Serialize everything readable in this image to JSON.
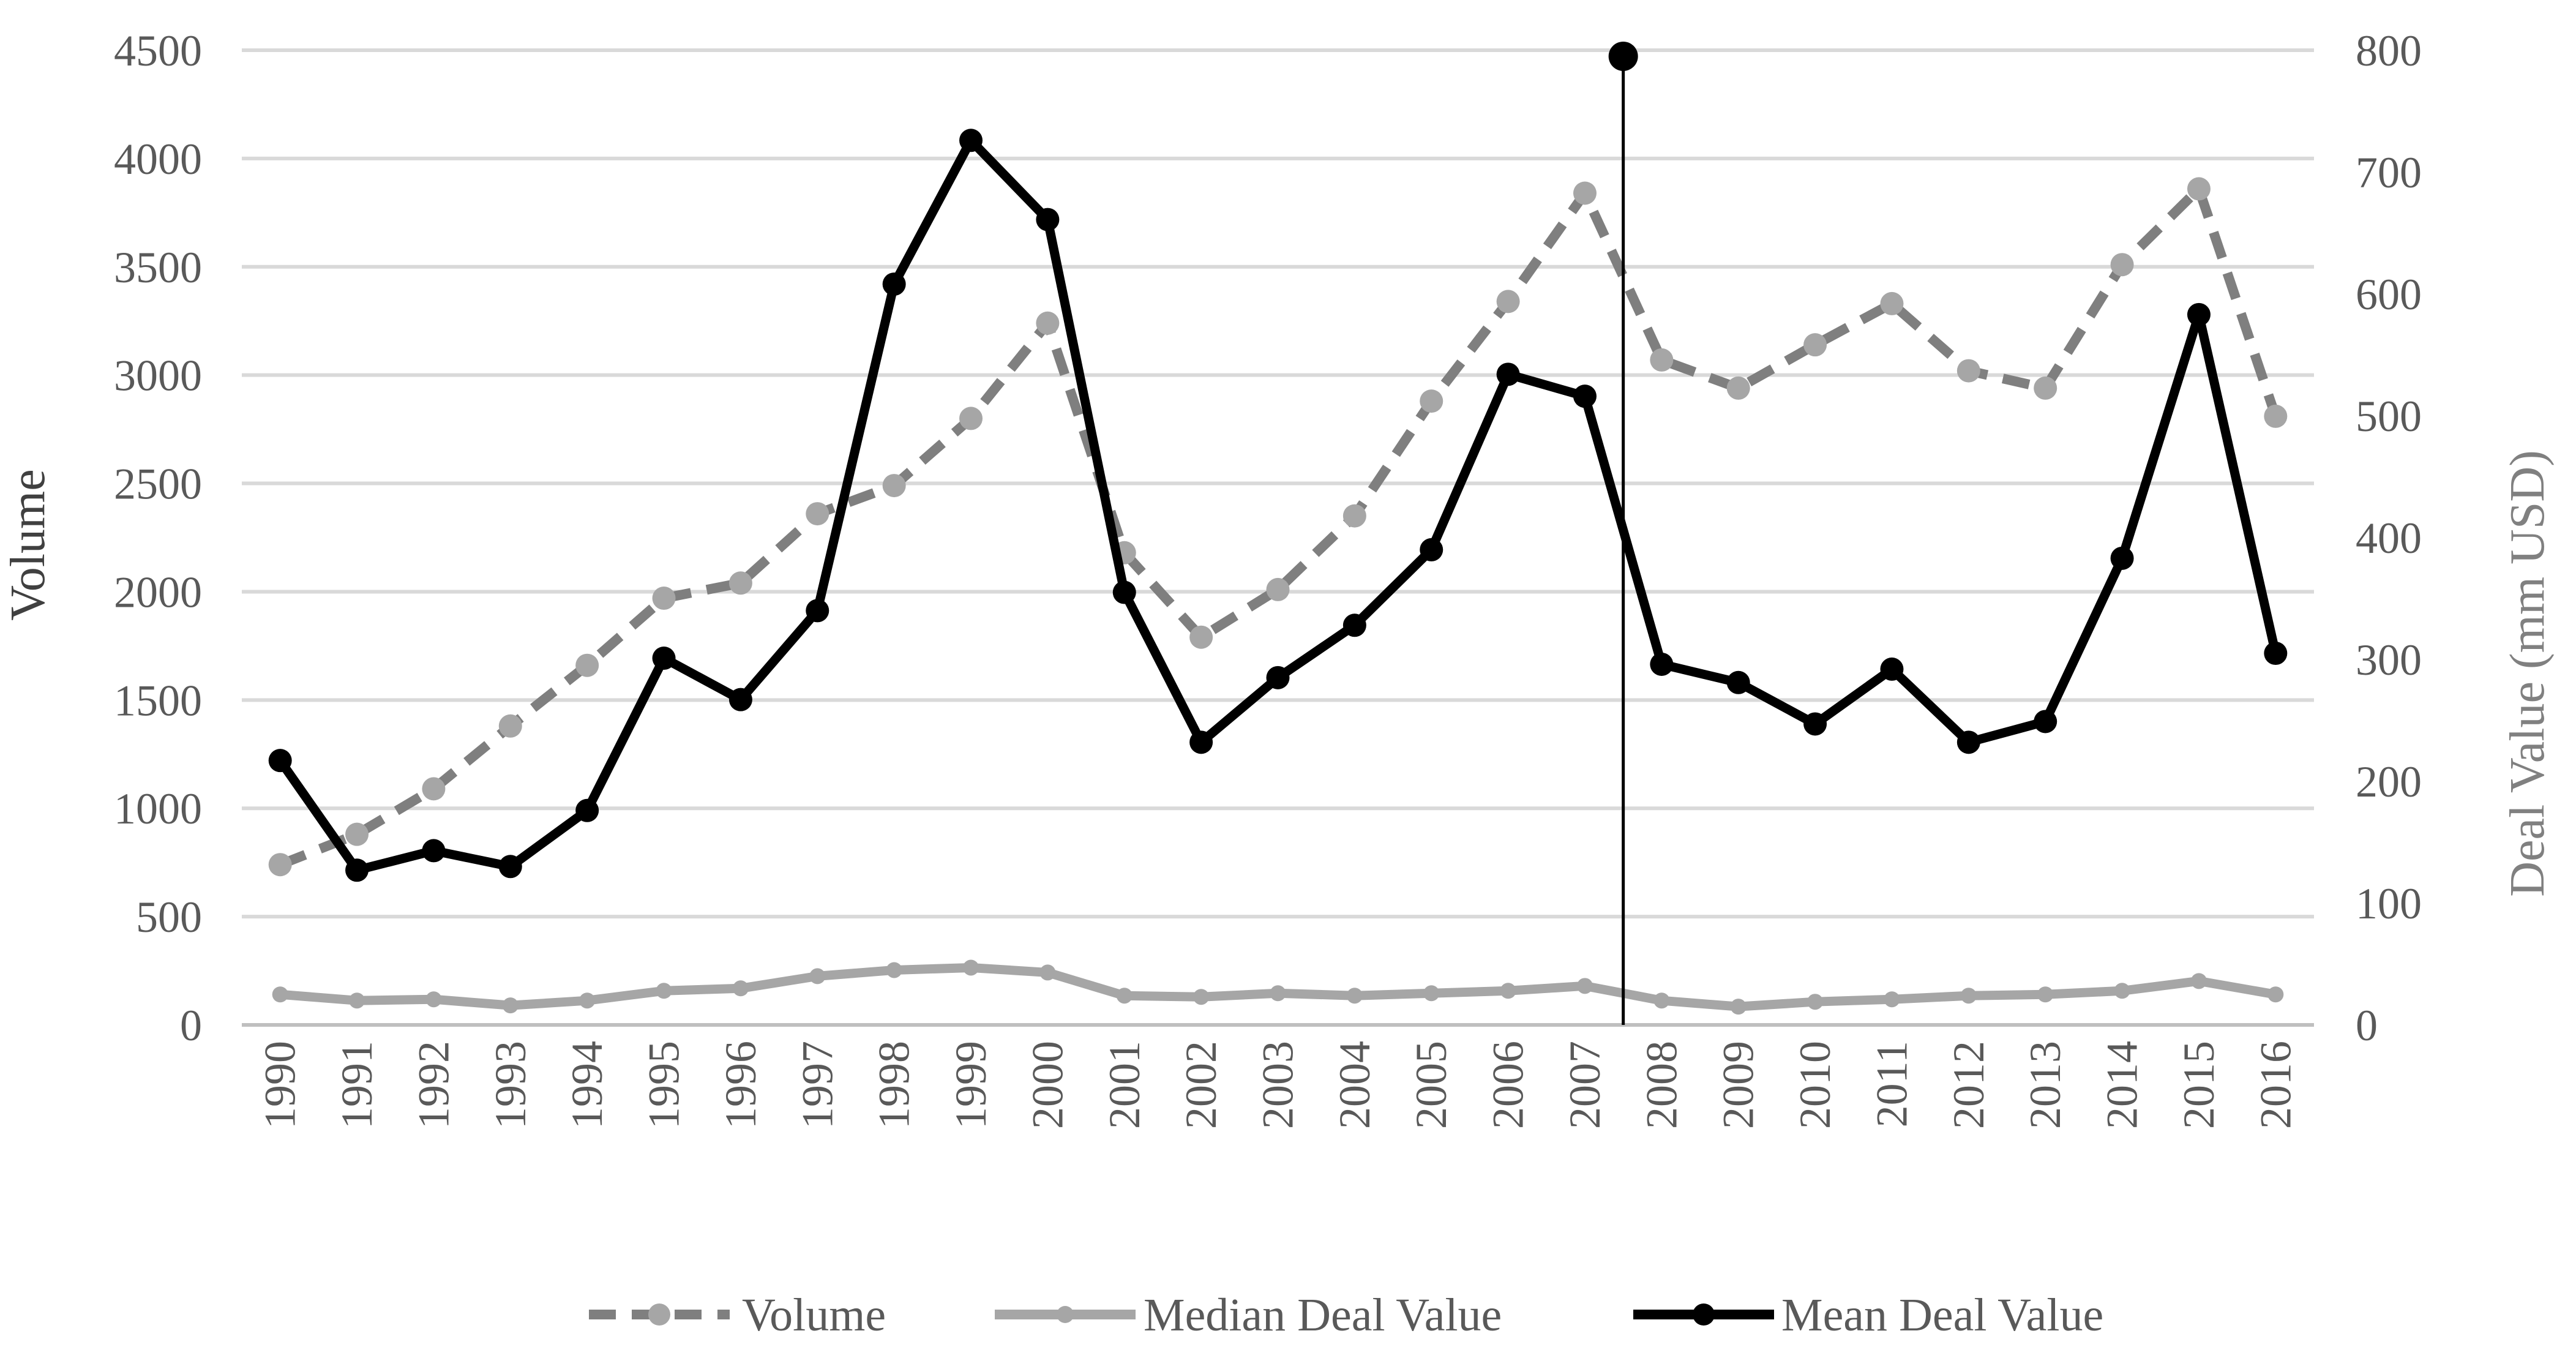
{
  "chart_data": {
    "type": "line",
    "title": "",
    "x": [
      "1990",
      "1991",
      "1992",
      "1993",
      "1994",
      "1995",
      "1996",
      "1997",
      "1998",
      "1999",
      "2000",
      "2001",
      "2002",
      "2003",
      "2004",
      "2005",
      "2006",
      "2007",
      "2008",
      "2009",
      "2010",
      "2011",
      "2012",
      "2013",
      "2014",
      "2015",
      "2016"
    ],
    "xlabel": "",
    "ylabel_left": "Volume",
    "ylabel_right": "Deal Value (mm USD)",
    "ylim_left": [
      0,
      4500
    ],
    "ylim_right": [
      0,
      800
    ],
    "yticks_left": [
      0,
      500,
      1000,
      1500,
      2000,
      2500,
      3000,
      3500,
      4000,
      4500
    ],
    "yticks_right": [
      0,
      100,
      200,
      300,
      400,
      500,
      600,
      700,
      800
    ],
    "grid": true,
    "series": [
      {
        "name": "Volume",
        "axis": "left",
        "style": "dashed-marker",
        "color": "#7f7f7f",
        "marker_color": "#a6a6a6",
        "values": [
          740,
          880,
          1090,
          1380,
          1660,
          1970,
          2040,
          2360,
          2490,
          2800,
          3240,
          2180,
          1790,
          2010,
          2350,
          2880,
          3340,
          3840,
          3070,
          2940,
          3140,
          3330,
          3020,
          2940,
          3510,
          3860,
          2810
        ]
      },
      {
        "name": "Median Deal Value",
        "axis": "right",
        "style": "solid",
        "color": "#a6a6a6",
        "values": [
          25,
          20,
          21,
          16,
          20,
          28,
          30,
          40,
          45,
          47,
          43,
          24,
          23,
          26,
          24,
          26,
          28,
          32,
          20,
          15,
          19,
          21,
          24,
          25,
          28,
          36,
          25
        ]
      },
      {
        "name": "Mean Deal Value",
        "axis": "right",
        "style": "solid-marker",
        "color": "#000000",
        "values": [
          217,
          127,
          143,
          130,
          176,
          301,
          267,
          340,
          608,
          726,
          661,
          355,
          232,
          285,
          328,
          390,
          534,
          516,
          296,
          281,
          247,
          292,
          232,
          249,
          383,
          583,
          305
        ]
      }
    ],
    "annotations": [
      {
        "type": "vertical-line",
        "between": [
          "2007",
          "2008"
        ],
        "marker_value_right": 795
      }
    ],
    "legend": {
      "position": "bottom",
      "entries": [
        "Volume",
        "Median Deal Value",
        "Mean Deal Value"
      ]
    }
  }
}
